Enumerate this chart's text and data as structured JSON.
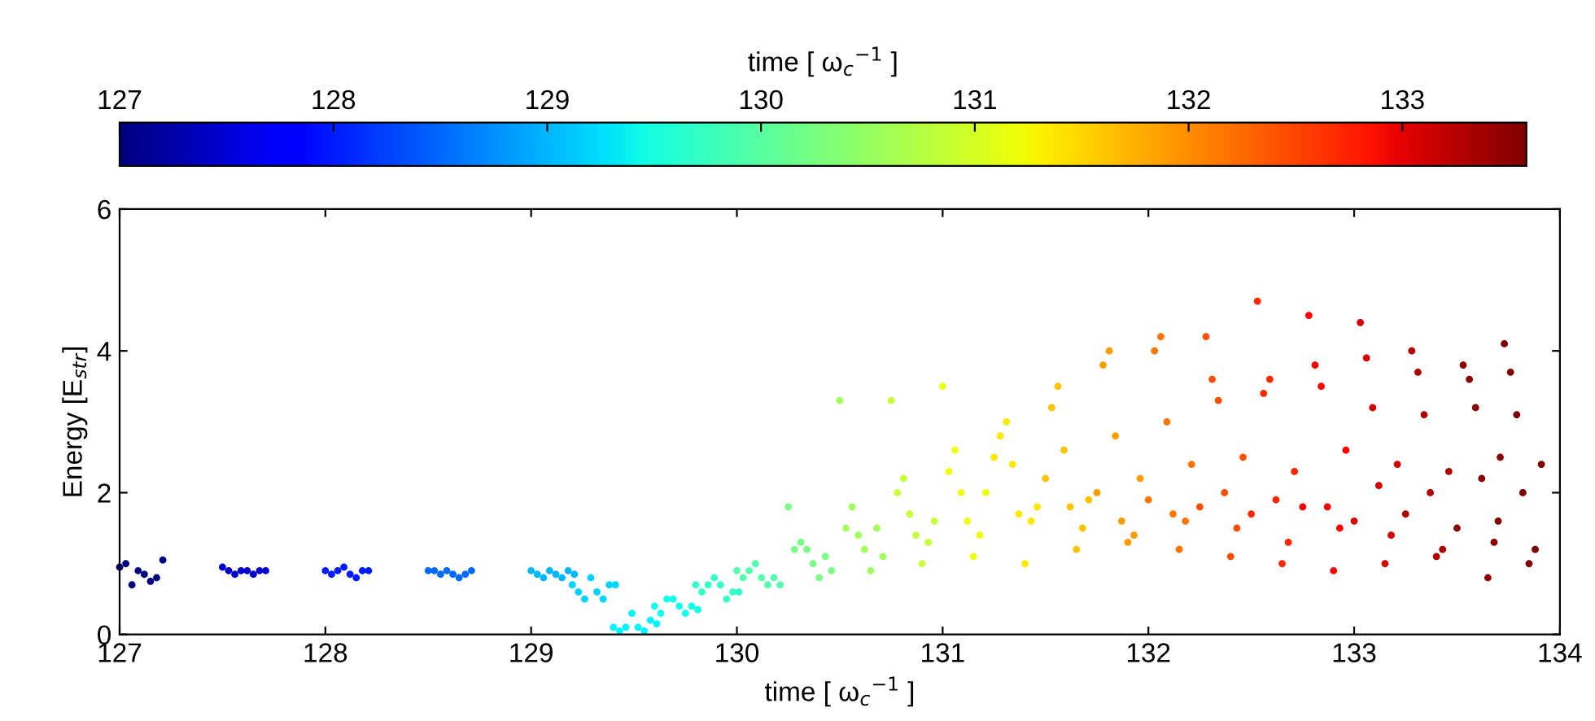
{
  "chart_data": {
    "type": "scatter",
    "xlabel": "time [ ω$_{c}$$^{−1}$ ]",
    "ylabel": "Energy [E$_{str}$]",
    "clabel": "time [ ω$_{c}$$^{−1}$ ]",
    "clim": [
      127,
      133.58
    ],
    "cticks": [
      127,
      128,
      129,
      130,
      131,
      132,
      133
    ],
    "xlim": [
      127,
      134
    ],
    "xticks": [
      127,
      128,
      129,
      130,
      131,
      132,
      133,
      134
    ],
    "ylim": [
      0,
      6
    ],
    "yticks": [
      0,
      2,
      4,
      6
    ],
    "grid": false,
    "legend": false,
    "marker": "circle",
    "series": [
      {
        "x": [
          127,
          127.5,
          128,
          128.5,
          129,
          129.2,
          129.4,
          129.6,
          129.8,
          130,
          130.25,
          130.5,
          130.75,
          131,
          131.25,
          131.5,
          131.75,
          132,
          132.25,
          132.5,
          132.75,
          133,
          133.25,
          133.5,
          133.7
        ],
        "values": [
          0.95,
          0.95,
          0.9,
          0.9,
          0.9,
          0.7,
          0.1,
          0.4,
          0.7,
          0.9,
          1.8,
          3.3,
          3.3,
          3.5,
          2.5,
          2.2,
          2.0,
          1.9,
          1.8,
          1.7,
          1.8,
          1.6,
          1.7,
          1.5,
          1.6
        ],
        "colors": [
          "#000080",
          "#0000cd",
          "#001bff",
          "#0069ff",
          "#00b7ff",
          "#00d5ff",
          "#00f5ff",
          "#14ffea",
          "#34ffcb",
          "#53ffac",
          "#79ff86",
          "#a0ff5f",
          "#c7ff38",
          "#eeff11",
          "#ffe900",
          "#ffc300",
          "#ff9c00",
          "#ff7500",
          "#ff4e00",
          "#ff2800",
          "#ff0000",
          "#d90000",
          "#b20000",
          "#8c0000",
          "#800000"
        ]
      },
      {
        "x": [
          127.03,
          127.53,
          128.03,
          128.53,
          129.03,
          129.23,
          129.43,
          129.63,
          129.83,
          130.03,
          130.28,
          130.53,
          130.78,
          131.03,
          131.28,
          131.53,
          131.78,
          132.03,
          132.28,
          132.53,
          132.78,
          133.03,
          133.28,
          133.53,
          133.73
        ],
        "values": [
          1.0,
          0.9,
          0.85,
          0.9,
          0.85,
          0.6,
          0.05,
          0.3,
          0.6,
          0.8,
          1.2,
          1.5,
          2.0,
          2.3,
          2.8,
          3.2,
          3.8,
          4.0,
          4.2,
          4.7,
          4.5,
          4.4,
          4.0,
          3.8,
          4.1
        ],
        "colors": [
          "#000080",
          "#0000cd",
          "#001bff",
          "#0069ff",
          "#00b7ff",
          "#00d5ff",
          "#00f5ff",
          "#14ffea",
          "#34ffcb",
          "#53ffac",
          "#79ff86",
          "#a0ff5f",
          "#c7ff38",
          "#eeff11",
          "#ffe900",
          "#ffc300",
          "#ff9c00",
          "#ff7500",
          "#ff4e00",
          "#ff2800",
          "#ff0000",
          "#d90000",
          "#b20000",
          "#8c0000",
          "#800000"
        ]
      },
      {
        "x": [
          127.06,
          127.56,
          128.06,
          128.56,
          129.06,
          129.26,
          129.46,
          129.66,
          129.86,
          130.06,
          130.31,
          130.56,
          130.81,
          131.06,
          131.31,
          131.56,
          131.81,
          132.06,
          132.31,
          132.56,
          132.81,
          133.06,
          133.31,
          133.56,
          133.76
        ],
        "values": [
          0.7,
          0.85,
          0.9,
          0.85,
          0.8,
          0.5,
          0.1,
          0.5,
          0.7,
          0.9,
          1.3,
          1.8,
          2.2,
          2.6,
          3.0,
          3.5,
          4.0,
          4.2,
          3.6,
          3.4,
          3.8,
          3.9,
          3.7,
          3.6,
          3.7
        ],
        "colors": [
          "#000080",
          "#0000cd",
          "#001bff",
          "#0069ff",
          "#00b7ff",
          "#00d5ff",
          "#00f5ff",
          "#14ffea",
          "#34ffcb",
          "#53ffac",
          "#79ff86",
          "#a0ff5f",
          "#c7ff38",
          "#eeff11",
          "#ffe900",
          "#ffc300",
          "#ff9c00",
          "#ff7500",
          "#ff4e00",
          "#ff2800",
          "#ff0000",
          "#d90000",
          "#b20000",
          "#8c0000",
          "#800000"
        ]
      },
      {
        "x": [
          127.09,
          127.59,
          128.09,
          128.59,
          129.09,
          129.29,
          129.49,
          129.69,
          129.89,
          130.09,
          130.34,
          130.59,
          130.84,
          131.09,
          131.34,
          131.59,
          131.84,
          132.09,
          132.34,
          132.59,
          132.84,
          133.09,
          133.34,
          133.59,
          133.79
        ],
        "values": [
          0.9,
          0.9,
          0.95,
          0.9,
          0.9,
          0.8,
          0.3,
          0.5,
          0.8,
          1.0,
          1.2,
          1.4,
          1.7,
          2.0,
          2.4,
          2.6,
          2.8,
          3.0,
          3.3,
          3.6,
          3.5,
          3.2,
          3.1,
          3.2,
          3.1
        ],
        "colors": [
          "#000080",
          "#0000cd",
          "#001bff",
          "#0069ff",
          "#00b7ff",
          "#00d5ff",
          "#00f5ff",
          "#14ffea",
          "#34ffcb",
          "#53ffac",
          "#79ff86",
          "#a0ff5f",
          "#c7ff38",
          "#eeff11",
          "#ffe900",
          "#ffc300",
          "#ff9c00",
          "#ff7500",
          "#ff4e00",
          "#ff2800",
          "#ff0000",
          "#d90000",
          "#b20000",
          "#8c0000",
          "#800000"
        ]
      },
      {
        "x": [
          127.12,
          127.62,
          128.12,
          128.62,
          129.12,
          129.32,
          129.52,
          129.72,
          129.92,
          130.12,
          130.37,
          130.62,
          130.87,
          131.12,
          131.37,
          131.62,
          131.87,
          132.12,
          132.37,
          132.62,
          132.87,
          133.12,
          133.37,
          133.62,
          133.82
        ],
        "values": [
          0.85,
          0.9,
          0.85,
          0.85,
          0.85,
          0.6,
          0.1,
          0.4,
          0.7,
          0.8,
          1.0,
          1.2,
          1.4,
          1.6,
          1.7,
          1.8,
          1.6,
          1.7,
          2.0,
          1.9,
          1.8,
          2.1,
          2.0,
          2.2,
          2.0
        ],
        "colors": [
          "#000080",
          "#0000cd",
          "#001bff",
          "#0069ff",
          "#00b7ff",
          "#00d5ff",
          "#00f5ff",
          "#14ffea",
          "#34ffcb",
          "#53ffac",
          "#79ff86",
          "#a0ff5f",
          "#c7ff38",
          "#eeff11",
          "#ffe900",
          "#ffc300",
          "#ff9c00",
          "#ff7500",
          "#ff4e00",
          "#ff2800",
          "#ff0000",
          "#d90000",
          "#b20000",
          "#8c0000",
          "#800000"
        ]
      },
      {
        "x": [
          127.15,
          127.65,
          128.15,
          128.65,
          129.15,
          129.35,
          129.55,
          129.75,
          129.95,
          130.15,
          130.4,
          130.65,
          130.9,
          131.15,
          131.4,
          131.65,
          131.9,
          132.15,
          132.4,
          132.65,
          132.9,
          133.15,
          133.4,
          133.65,
          133.85
        ],
        "values": [
          0.75,
          0.85,
          0.8,
          0.8,
          0.8,
          0.5,
          0.05,
          0.3,
          0.5,
          0.7,
          0.8,
          0.9,
          1.0,
          1.1,
          1.0,
          1.2,
          1.3,
          1.2,
          1.1,
          1.0,
          0.9,
          1.0,
          1.1,
          0.8,
          1.0
        ],
        "colors": [
          "#000080",
          "#0000cd",
          "#001bff",
          "#0069ff",
          "#00b7ff",
          "#00d5ff",
          "#00f5ff",
          "#14ffea",
          "#34ffcb",
          "#53ffac",
          "#79ff86",
          "#a0ff5f",
          "#c7ff38",
          "#eeff11",
          "#ffe900",
          "#ffc300",
          "#ff9c00",
          "#ff7500",
          "#ff4e00",
          "#ff2800",
          "#ff0000",
          "#d90000",
          "#b20000",
          "#8c0000",
          "#800000"
        ]
      },
      {
        "x": [
          127.18,
          127.68,
          128.18,
          128.68,
          129.18,
          129.38,
          129.58,
          129.78,
          129.98,
          130.18,
          130.43,
          130.68,
          130.93,
          131.18,
          131.43,
          131.68,
          131.93,
          132.18,
          132.43,
          132.68,
          132.93,
          133.18,
          133.43,
          133.68,
          133.88
        ],
        "values": [
          0.8,
          0.9,
          0.9,
          0.85,
          0.9,
          0.7,
          0.2,
          0.4,
          0.6,
          0.8,
          1.1,
          1.5,
          1.3,
          1.4,
          1.6,
          1.5,
          1.4,
          1.6,
          1.5,
          1.3,
          1.5,
          1.4,
          1.2,
          1.3,
          1.2
        ],
        "colors": [
          "#000080",
          "#0000cd",
          "#001bff",
          "#0069ff",
          "#00b7ff",
          "#00d5ff",
          "#00f5ff",
          "#14ffea",
          "#34ffcb",
          "#53ffac",
          "#79ff86",
          "#a0ff5f",
          "#c7ff38",
          "#eeff11",
          "#ffe900",
          "#ffc300",
          "#ff9c00",
          "#ff7500",
          "#ff4e00",
          "#ff2800",
          "#ff0000",
          "#d90000",
          "#b20000",
          "#8c0000",
          "#800000"
        ]
      },
      {
        "x": [
          127.21,
          127.71,
          128.21,
          128.71,
          129.21,
          129.41,
          129.61,
          129.81,
          130.01,
          130.21,
          130.46,
          130.71,
          130.96,
          131.21,
          131.46,
          131.71,
          131.96,
          132.21,
          132.46,
          132.71,
          132.96,
          133.21,
          133.46,
          133.71,
          133.91
        ],
        "values": [
          1.05,
          0.9,
          0.9,
          0.9,
          0.85,
          0.7,
          0.15,
          0.35,
          0.6,
          0.7,
          0.9,
          1.1,
          1.6,
          2.0,
          1.8,
          1.9,
          2.2,
          2.4,
          2.5,
          2.3,
          2.6,
          2.4,
          2.3,
          2.5,
          2.4
        ],
        "colors": [
          "#000080",
          "#0000cd",
          "#001bff",
          "#0069ff",
          "#00b7ff",
          "#00d5ff",
          "#00f5ff",
          "#14ffea",
          "#34ffcb",
          "#53ffac",
          "#79ff86",
          "#a0ff5f",
          "#c7ff38",
          "#eeff11",
          "#ffe900",
          "#ffc300",
          "#ff9c00",
          "#ff7500",
          "#ff4e00",
          "#ff2800",
          "#ff0000",
          "#d90000",
          "#b20000",
          "#8c0000",
          "#800000"
        ]
      }
    ]
  }
}
